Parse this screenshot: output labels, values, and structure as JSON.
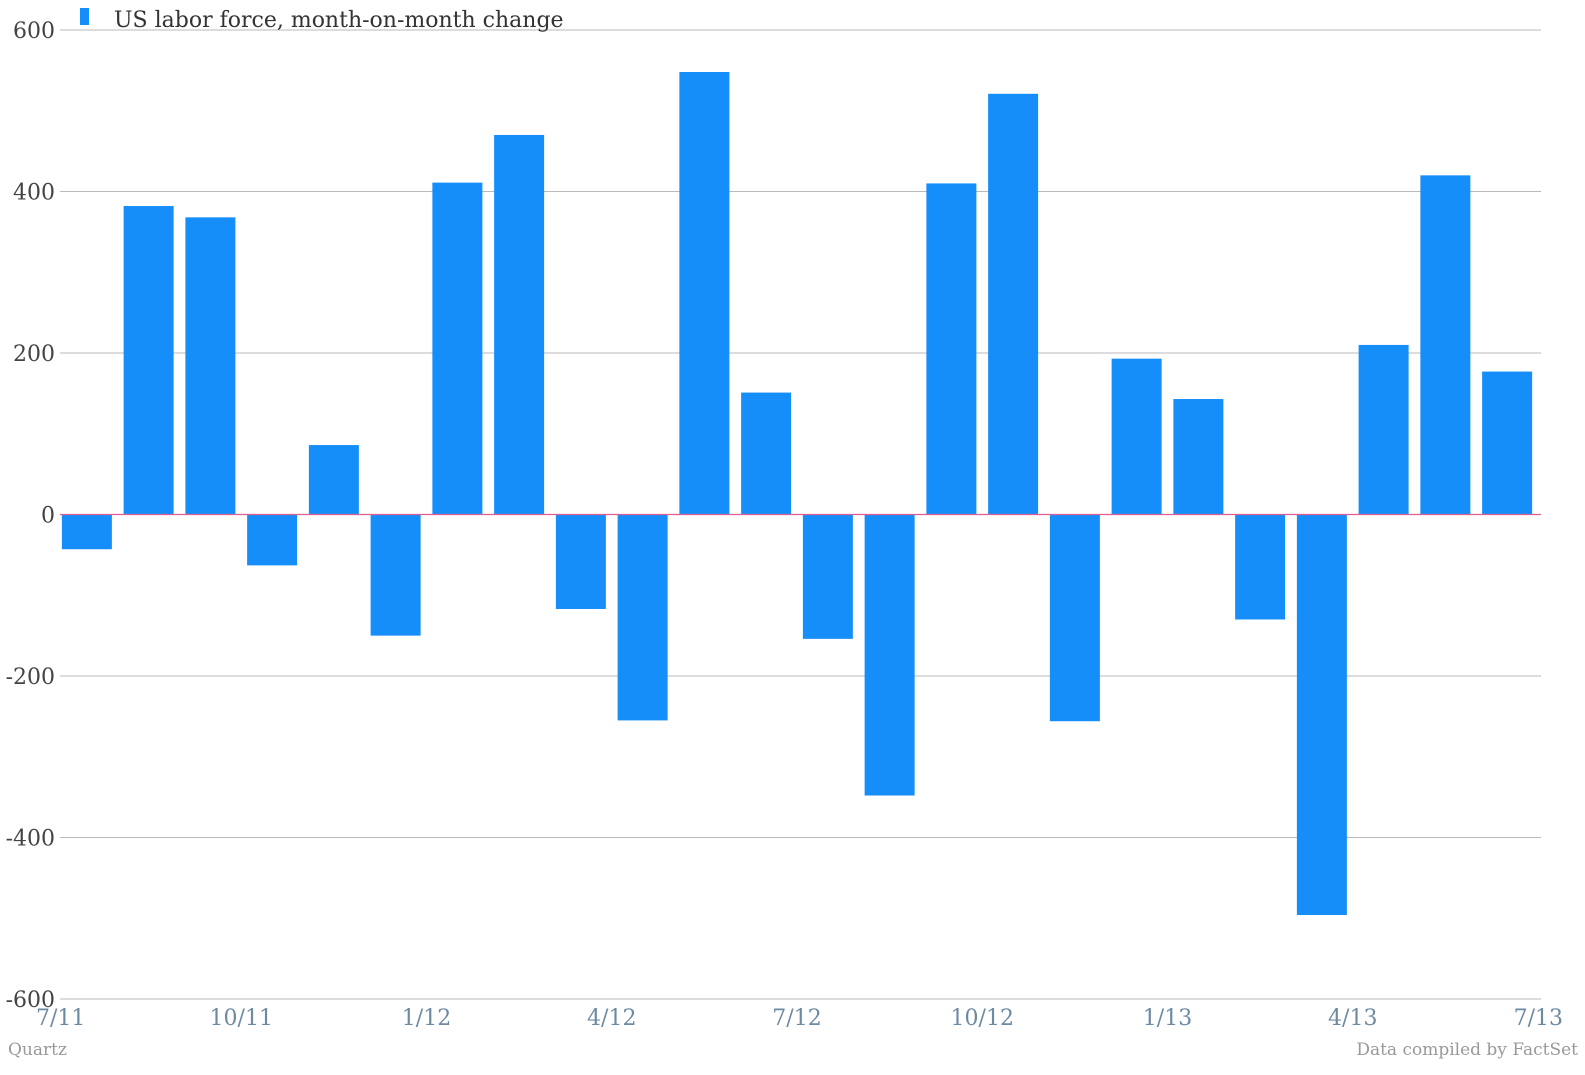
{
  "chart_data": {
    "type": "bar",
    "legend": {
      "label": "US labor force, month-on-month change",
      "placement": "top-left"
    },
    "color": "#168ef9",
    "ylim": [
      -600,
      600
    ],
    "yticks": [
      600,
      400,
      200,
      0,
      -200,
      -400,
      -600
    ],
    "grid": true,
    "xticks": [
      "7/11",
      "10/11",
      "1/12",
      "4/12",
      "7/12",
      "10/12",
      "1/13",
      "4/13",
      "7/13"
    ],
    "categories": [
      "7/11",
      "8/11",
      "9/11",
      "10/11",
      "11/11",
      "12/11",
      "1/12",
      "2/12",
      "3/12",
      "4/12",
      "5/12",
      "6/12",
      "7/12",
      "8/12",
      "9/12",
      "10/12",
      "11/12",
      "12/12",
      "1/13",
      "2/13",
      "3/13",
      "4/13",
      "5/13",
      "6/13"
    ],
    "series": [
      {
        "values": [
          -43,
          382,
          368,
          -63,
          86,
          -150,
          411,
          470,
          -117,
          -255,
          548,
          151,
          -154,
          -348,
          410,
          521,
          -256,
          193,
          143,
          -130,
          -496,
          210,
          420,
          177
        ]
      }
    ],
    "source_left": "Quartz",
    "source_right": "Data compiled by FactSet"
  }
}
